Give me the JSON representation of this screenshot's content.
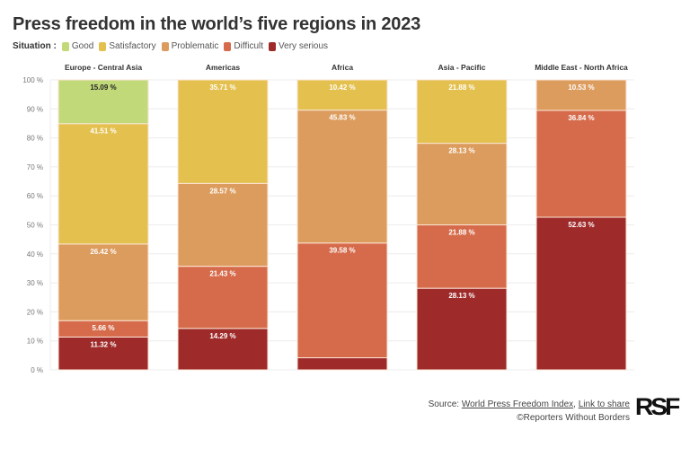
{
  "title": "Press freedom in the world’s five regions in 2023",
  "legend": {
    "label": "Situation :",
    "items": [
      {
        "name": "Good",
        "color": "#c2d97a"
      },
      {
        "name": "Satisfactory",
        "color": "#e4c04e"
      },
      {
        "name": "Problematic",
        "color": "#dc9c5e"
      },
      {
        "name": "Difficult",
        "color": "#d66b4b"
      },
      {
        "name": "Very serious",
        "color": "#9e2a2a"
      }
    ]
  },
  "chart_data": {
    "type": "bar",
    "stacked": true,
    "title": "Press freedom in the world’s five regions in 2023",
    "categories": [
      "Europe - Central Asia",
      "Americas",
      "Africa",
      "Asia - Pacific",
      "Middle East - North Africa"
    ],
    "series": [
      {
        "name": "Very serious",
        "color": "#9e2a2a",
        "values": [
          11.32,
          14.29,
          4.17,
          28.13,
          52.63
        ],
        "labels": [
          "11.32 %",
          "14.29 %",
          "",
          "28.13 %",
          "52.63 %"
        ]
      },
      {
        "name": "Difficult",
        "color": "#d66b4b",
        "values": [
          5.66,
          21.43,
          39.58,
          21.88,
          36.84
        ],
        "labels": [
          "5.66 %",
          "21.43 %",
          "39.58 %",
          "21.88 %",
          "36.84 %"
        ]
      },
      {
        "name": "Problematic",
        "color": "#dc9c5e",
        "values": [
          26.42,
          28.57,
          45.83,
          28.13,
          10.53
        ],
        "labels": [
          "26.42 %",
          "28.57 %",
          "45.83 %",
          "28.13 %",
          "10.53 %"
        ]
      },
      {
        "name": "Satisfactory",
        "color": "#e4c04e",
        "values": [
          41.51,
          35.71,
          10.42,
          21.88,
          0
        ],
        "labels": [
          "41.51 %",
          "35.71 %",
          "10.42 %",
          "21.88 %",
          ""
        ]
      },
      {
        "name": "Good",
        "color": "#c2d97a",
        "values": [
          15.09,
          0,
          0,
          0,
          0
        ],
        "labels": [
          "15.09 %",
          "",
          "",
          "",
          ""
        ]
      }
    ],
    "yticks": [
      "0 %",
      "10 %",
      "20 %",
      "30 %",
      "40 %",
      "50 %",
      "60 %",
      "70 %",
      "80 %",
      "90 %",
      "100 %"
    ],
    "ylim": [
      0,
      100
    ],
    "xlabel": "",
    "ylabel": "",
    "grid": true,
    "legend_position": "top-left"
  },
  "footer": {
    "source_prefix": "Source: ",
    "source_link": "World Press Freedom Index",
    "separator": ", ",
    "share_link": "Link to share",
    "copyright": "©Reporters Without Borders",
    "logo": "RSF"
  }
}
